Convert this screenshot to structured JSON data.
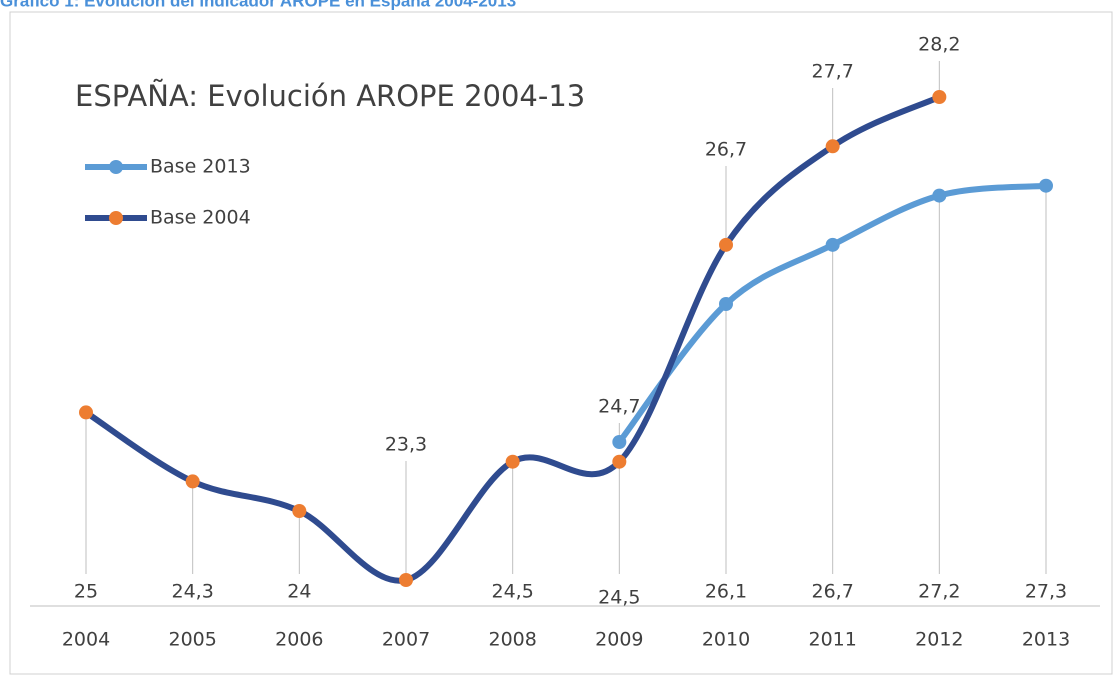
{
  "heading": "Gráfico 1: Evolución del indicador AROPE en España 2004-2013",
  "chart_data": {
    "type": "line",
    "title": "ESPAÑA: Evolución AROPE 2004-13",
    "categories": [
      "2004",
      "2005",
      "2006",
      "2007",
      "2008",
      "2009",
      "2010",
      "2011",
      "2012",
      "2013"
    ],
    "series": [
      {
        "name": "Base 2013",
        "color": "#5b9bd5",
        "marker_color": "#5b9bd5",
        "values": [
          null,
          null,
          null,
          null,
          null,
          24.7,
          26.1,
          26.7,
          27.2,
          27.3
        ],
        "value_labels": [
          null,
          null,
          null,
          null,
          null,
          "24,7",
          "26,1",
          "26,7",
          "27,2",
          "27,3"
        ]
      },
      {
        "name": "Base 2004",
        "color": "#2f4b8f",
        "marker_color": "#ed7d31",
        "values": [
          25,
          24.3,
          24,
          23.3,
          24.5,
          24.5,
          26.7,
          27.7,
          28.2,
          null
        ],
        "value_labels": [
          "25",
          "24,3",
          "24",
          "23,3",
          "24,5",
          "24,5",
          "26,7",
          "27,7",
          "28,2",
          null
        ]
      }
    ],
    "legend": "top-left",
    "grid": false
  }
}
